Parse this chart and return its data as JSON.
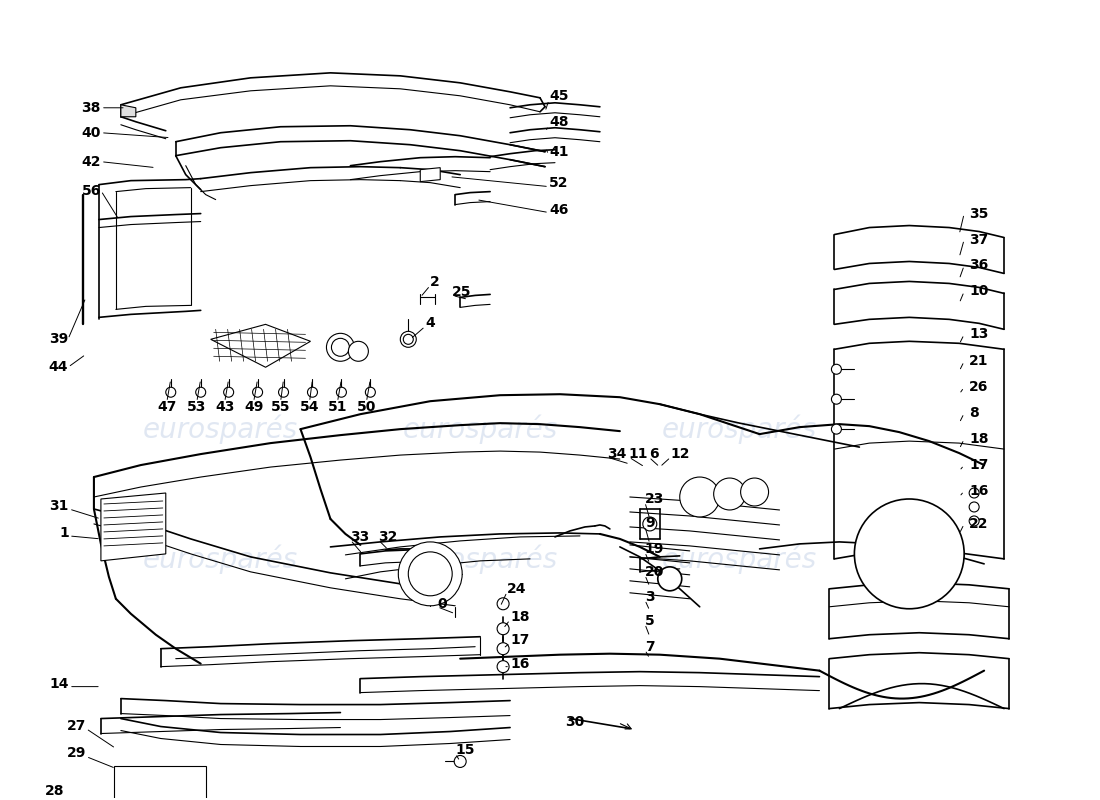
{
  "background_color": "#ffffff",
  "line_color": "#000000",
  "watermark_color": "#c8d4e8",
  "watermark_text": "eurosparés",
  "label_fontsize": 10,
  "label_fontweight": "bold",
  "figwidth": 11.0,
  "figheight": 8.0,
  "dpi": 100
}
